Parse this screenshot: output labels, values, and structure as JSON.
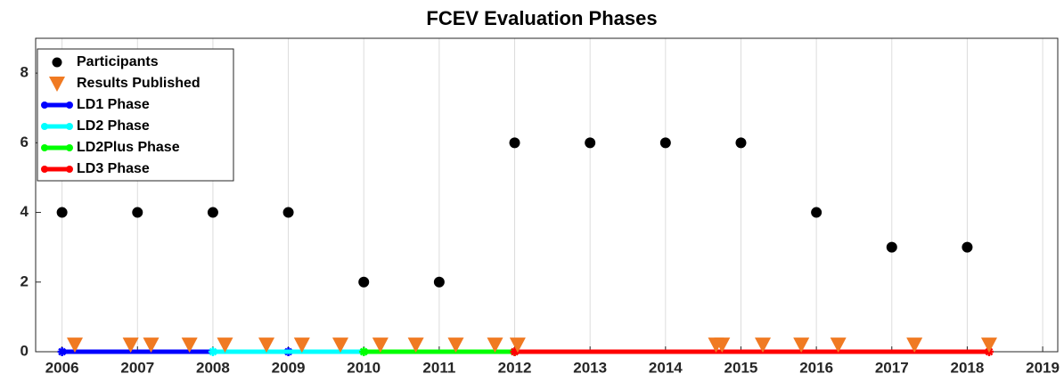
{
  "chart_data": {
    "type": "line",
    "title": "FCEV Evaluation Phases",
    "xlim": [
      2005.65,
      2019.2
    ],
    "ylim": [
      0,
      9
    ],
    "xticks": [
      2006,
      2007,
      2008,
      2009,
      2010,
      2011,
      2012,
      2013,
      2014,
      2015,
      2016,
      2017,
      2018,
      2019
    ],
    "yticks": [
      0,
      2,
      4,
      6,
      8
    ],
    "grid": "x",
    "legend": "upper left",
    "series": [
      {
        "name": "Participants",
        "kind": "scatter",
        "marker": "circle",
        "color": "#000000",
        "x": [
          2006,
          2007,
          2008,
          2009,
          2010,
          2011,
          2012,
          2013,
          2014,
          2015,
          2016,
          2017,
          2018
        ],
        "values": [
          4,
          4,
          4,
          4,
          2,
          2,
          6,
          6,
          6,
          6,
          4,
          3,
          3
        ]
      },
      {
        "name": "Results Published",
        "kind": "scatter",
        "marker": "triangle-down",
        "color": "#f07a22",
        "x": [
          2006.17,
          2006.91,
          2007.18,
          2007.69,
          2008.16,
          2008.71,
          2009.18,
          2009.69,
          2010.22,
          2010.69,
          2011.22,
          2011.74,
          2012.04,
          2014.67,
          2014.75,
          2015.29,
          2015.8,
          2016.29,
          2017.3,
          2018.29
        ],
        "values": [
          0.2,
          0.2,
          0.2,
          0.2,
          0.2,
          0.2,
          0.2,
          0.2,
          0.2,
          0.2,
          0.2,
          0.2,
          0.2,
          0.2,
          0.2,
          0.2,
          0.2,
          0.2,
          0.2,
          0.2
        ]
      },
      {
        "name": "LD1 Phase",
        "kind": "line",
        "color": "#0000ff",
        "x": [
          2006,
          2009
        ],
        "values": [
          0,
          0
        ]
      },
      {
        "name": "LD2 Phase",
        "kind": "line",
        "color": "#00ffff",
        "x": [
          2008,
          2010
        ],
        "values": [
          0,
          0
        ]
      },
      {
        "name": "LD2Plus Phase",
        "kind": "line",
        "color": "#00ff00",
        "x": [
          2010,
          2012
        ],
        "values": [
          0,
          0
        ]
      },
      {
        "name": "LD3 Phase",
        "kind": "line",
        "color": "#ff0000",
        "x": [
          2012,
          2018.29
        ],
        "values": [
          0,
          0
        ]
      }
    ]
  }
}
